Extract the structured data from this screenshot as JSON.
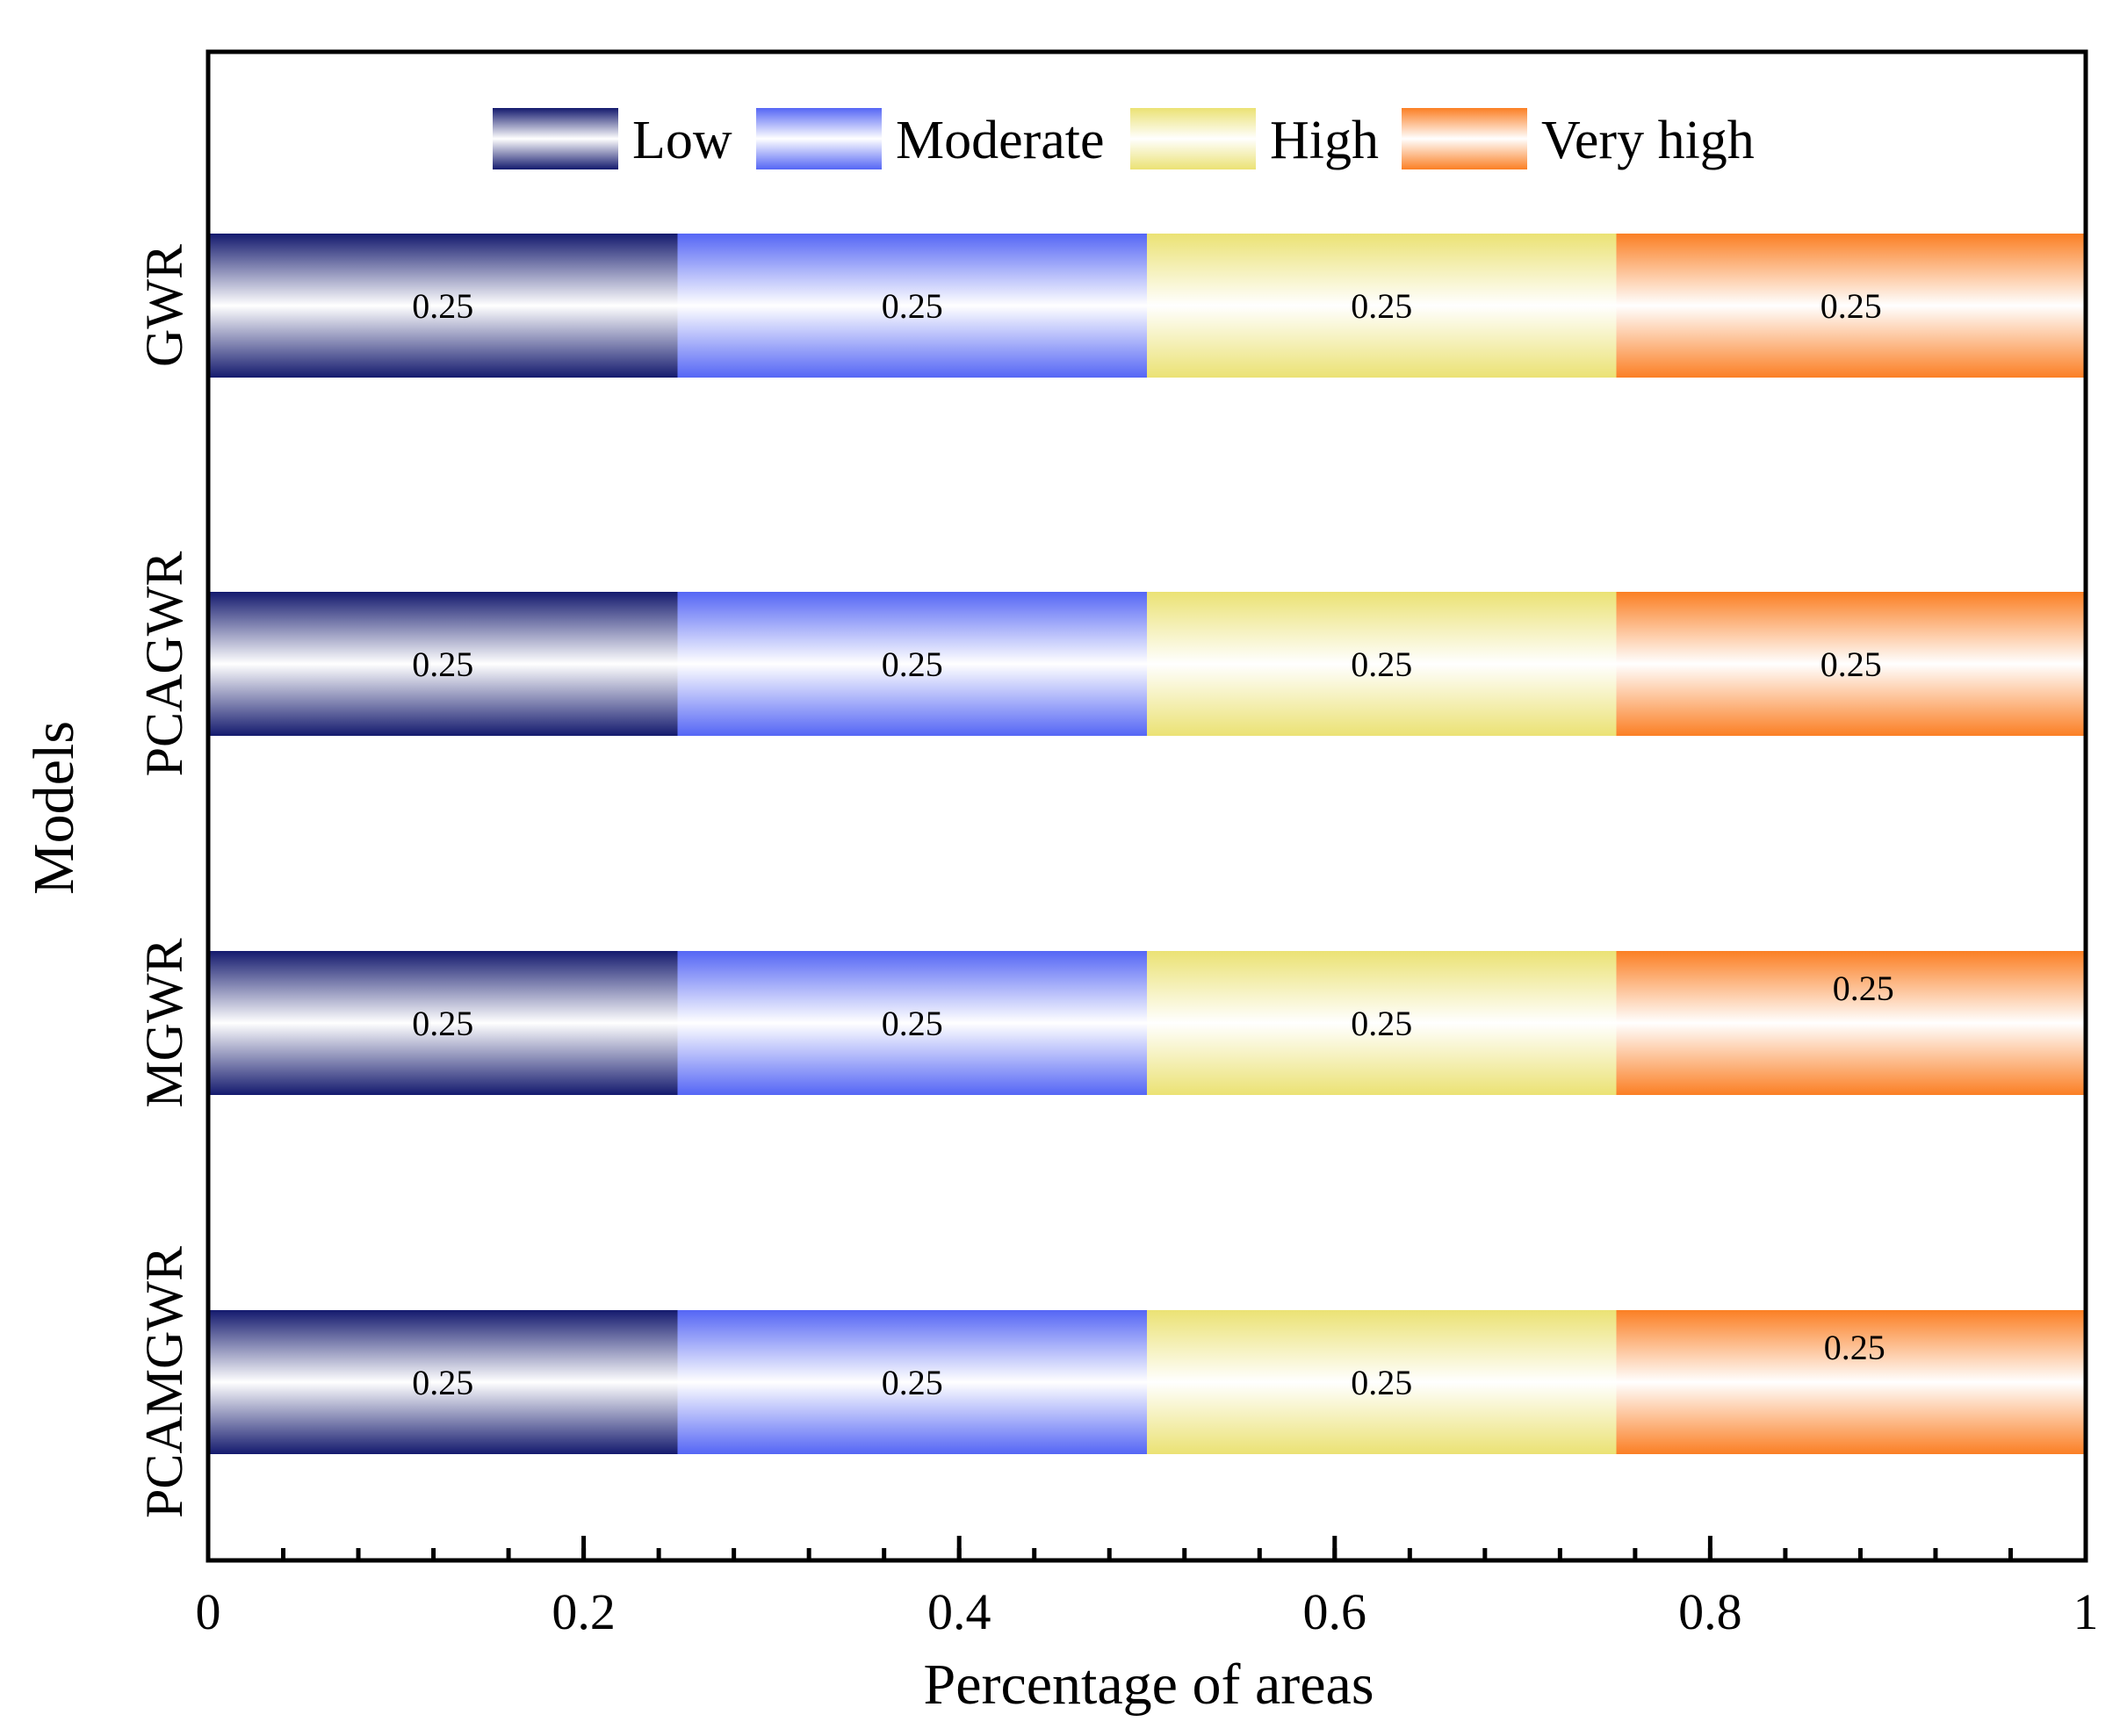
{
  "chart_data": {
    "type": "bar",
    "orientation": "horizontal",
    "stacked": true,
    "title": "",
    "xlabel": "Percentage of areas",
    "ylabel": "Models",
    "xlim": [
      0,
      1
    ],
    "xticks": [
      0,
      0.2,
      0.4,
      0.6,
      0.8,
      1
    ],
    "xtick_labels": [
      "0",
      "0.2",
      "0.4",
      "0.6",
      "0.8",
      "1"
    ],
    "categories": [
      "GWR",
      "PCAGWR",
      "MGWR",
      "PCAMGWR"
    ],
    "series": [
      {
        "name": "Low",
        "values": [
          0.25,
          0.25,
          0.25,
          0.25
        ],
        "labels": [
          "0.25",
          "0.25",
          "0.25",
          "0.25"
        ],
        "edge_color": "#141a6e",
        "center_color": "#ffffff"
      },
      {
        "name": "Moderate",
        "values": [
          0.25,
          0.25,
          0.25,
          0.25
        ],
        "labels": [
          "0.25",
          "0.25",
          "0.25",
          "0.25"
        ],
        "edge_color": "#5566f5",
        "center_color": "#ffffff"
      },
      {
        "name": "High",
        "values": [
          0.25,
          0.25,
          0.25,
          0.25
        ],
        "labels": [
          "0.25",
          "0.25",
          "0.25",
          "0.25"
        ],
        "edge_color": "#ebe274",
        "center_color": "#ffffff"
      },
      {
        "name": "Very high",
        "values": [
          0.25,
          0.25,
          0.25,
          0.25
        ],
        "labels": [
          "0.25",
          "0.25",
          "0.25",
          "0.25"
        ],
        "edge_color": "#fb7f24",
        "center_color": "#ffffff"
      }
    ],
    "legend": {
      "position": "top-center",
      "orientation": "horizontal"
    },
    "grid": false
  }
}
